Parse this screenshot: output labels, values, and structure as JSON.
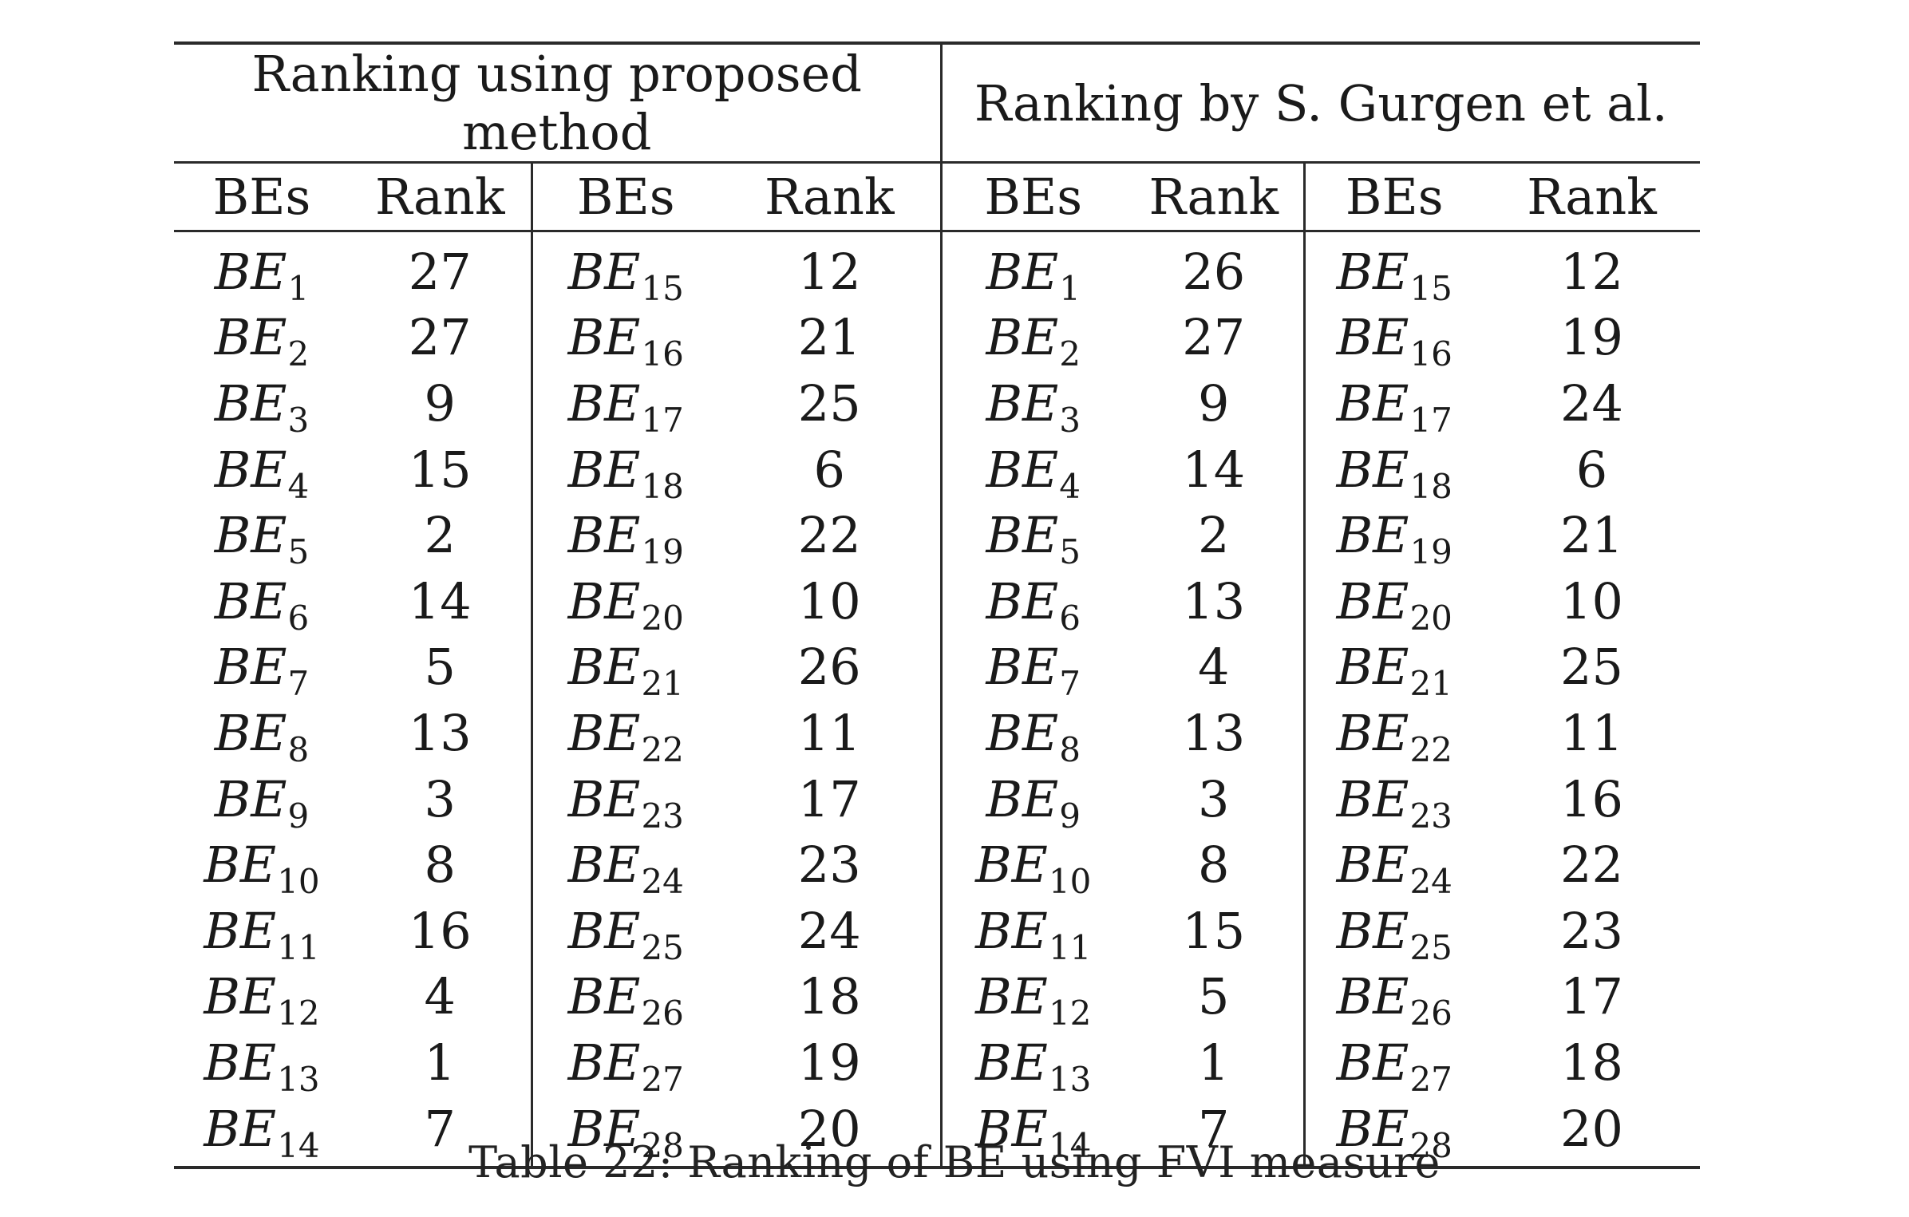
{
  "table": {
    "group_headers": [
      "Ranking using proposed method",
      "Ranking by S. Gurgen et al."
    ],
    "column_headers": [
      "BEs",
      "Rank",
      "BEs",
      "Rank",
      "BEs",
      "Rank",
      "BEs",
      "Rank"
    ],
    "be_prefix": "BE",
    "rows": [
      [
        "1",
        "27",
        "15",
        "12",
        "1",
        "26",
        "15",
        "12"
      ],
      [
        "2",
        "27",
        "16",
        "21",
        "2",
        "27",
        "16",
        "19"
      ],
      [
        "3",
        "9",
        "17",
        "25",
        "3",
        "9",
        "17",
        "24"
      ],
      [
        "4",
        "15",
        "18",
        "6",
        "4",
        "14",
        "18",
        "6"
      ],
      [
        "5",
        "2",
        "19",
        "22",
        "5",
        "2",
        "19",
        "21"
      ],
      [
        "6",
        "14",
        "20",
        "10",
        "6",
        "13",
        "20",
        "10"
      ],
      [
        "7",
        "5",
        "21",
        "26",
        "7",
        "4",
        "21",
        "25"
      ],
      [
        "8",
        "13",
        "22",
        "11",
        "8",
        "13",
        "22",
        "11"
      ],
      [
        "9",
        "3",
        "23",
        "17",
        "9",
        "3",
        "23",
        "16"
      ],
      [
        "10",
        "8",
        "24",
        "23",
        "10",
        "8",
        "24",
        "22"
      ],
      [
        "11",
        "16",
        "25",
        "24",
        "11",
        "15",
        "25",
        "23"
      ],
      [
        "12",
        "4",
        "26",
        "18",
        "12",
        "5",
        "26",
        "17"
      ],
      [
        "13",
        "1",
        "27",
        "19",
        "13",
        "1",
        "27",
        "18"
      ],
      [
        "14",
        "7",
        "28",
        "20",
        "14",
        "7",
        "28",
        "20"
      ]
    ]
  },
  "caption": "Table 22: Ranking of BE using FVI measure"
}
